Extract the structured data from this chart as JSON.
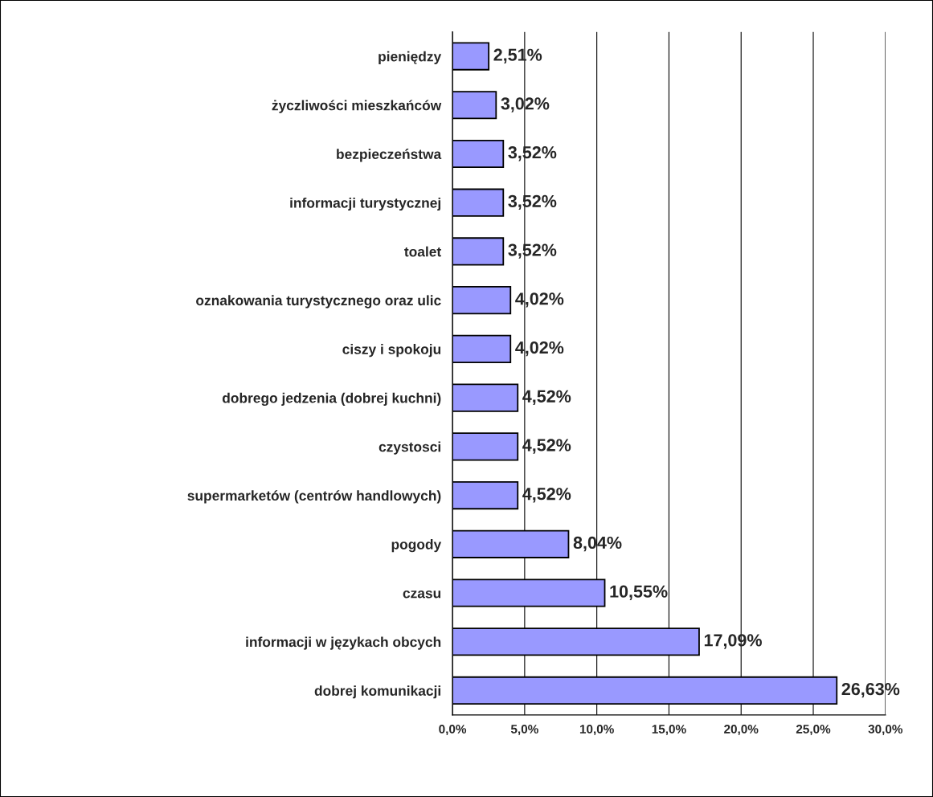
{
  "chart_data": {
    "type": "bar",
    "orientation": "horizontal",
    "categories": [
      "pieniędzy",
      "życzliwości mieszkańców",
      "bezpieczeństwa",
      "informacji turystycznej",
      "toalet",
      "oznakowania turystycznego oraz ulic",
      "ciszy i spokoju",
      "dobrego jedzenia (dobrej kuchni)",
      "czystosci",
      "supermarketów (centrów handlowych)",
      "pogody",
      "czasu",
      "informacji w językach obcych",
      "dobrej komunikacji"
    ],
    "values": [
      2.51,
      3.02,
      3.52,
      3.52,
      3.52,
      4.02,
      4.02,
      4.52,
      4.52,
      4.52,
      8.04,
      10.55,
      17.09,
      26.63
    ],
    "value_labels": [
      "2,51%",
      "3,02%",
      "3,52%",
      "3,52%",
      "3,52%",
      "4,02%",
      "4,02%",
      "4,52%",
      "4,52%",
      "4,52%",
      "8,04%",
      "10,55%",
      "17,09%",
      "26,63%"
    ],
    "color": "#9999ff",
    "xlim": [
      0,
      30
    ],
    "xticks": [
      {
        "value": 0,
        "label": "0,0%"
      },
      {
        "value": 5,
        "label": "5,0%"
      },
      {
        "value": 10,
        "label": "10,0%"
      },
      {
        "value": 15,
        "label": "15,0%"
      },
      {
        "value": 20,
        "label": "20,0%"
      },
      {
        "value": 25,
        "label": "25,0%"
      },
      {
        "value": 30,
        "label": "30,0%"
      }
    ],
    "grid": "x"
  }
}
